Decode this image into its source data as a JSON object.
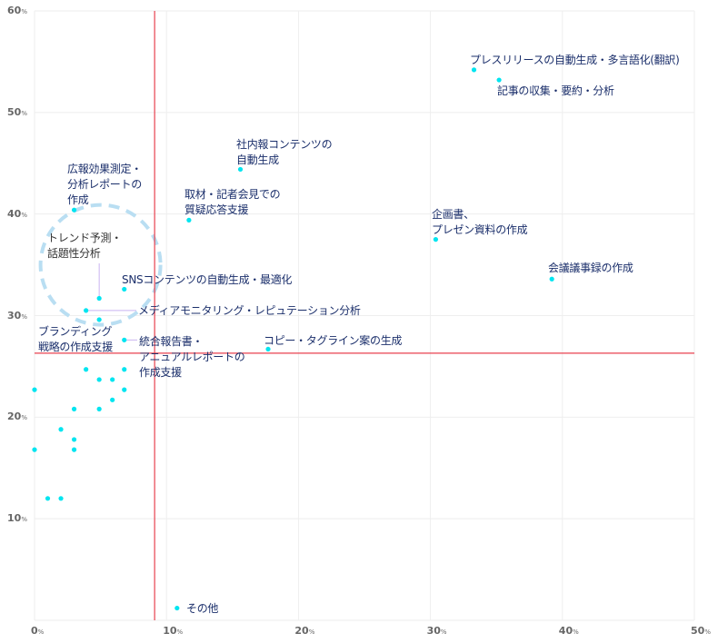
{
  "chart_data": {
    "type": "scatter",
    "title": "",
    "xlabel": "",
    "ylabel": "",
    "xlim": [
      0,
      50
    ],
    "ylim": [
      0,
      60
    ],
    "x_ticks": [
      "0",
      "10",
      "20",
      "30",
      "40",
      "50"
    ],
    "y_ticks": [
      "10",
      "20",
      "30",
      "40",
      "50",
      "60"
    ],
    "tick_suffix": "%",
    "grid": true,
    "colors": {
      "point": "#00e5f0",
      "reference_line": "#e8414f",
      "label": "#1b2f6b",
      "highlight_circle": "#b9def2",
      "leader": "#c9b3f0",
      "grid": "#eeeeee"
    },
    "reference_lines": {
      "x_mean": 9.1,
      "y_mean": 26.3
    },
    "highlight": {
      "label": [
        "トレンド予測・",
        "話題性分析"
      ],
      "center": [
        5.0,
        35.0
      ]
    },
    "points": [
      {
        "x": 33.3,
        "y": 54.2,
        "label": [
          "プレスリリースの自動生成・多言語化(翻訳)"
        ]
      },
      {
        "x": 35.2,
        "y": 53.2,
        "label": [
          "記事の収集・要約・分析"
        ]
      },
      {
        "x": 15.6,
        "y": 44.4,
        "label": [
          "社内報コンテンツの",
          "自動生成"
        ]
      },
      {
        "x": 11.7,
        "y": 39.4,
        "label": [
          "取材・記者会見での",
          "質疑応答支援"
        ]
      },
      {
        "x": 30.4,
        "y": 37.5,
        "label": [
          "企画書、",
          "プレゼン資料の作成"
        ]
      },
      {
        "x": 39.2,
        "y": 33.6,
        "label": [
          "会議議事録の作成"
        ]
      },
      {
        "x": 3.0,
        "y": 40.4,
        "label": [
          "広報効果測定・",
          "分析レポートの",
          "作成"
        ]
      },
      {
        "x": 6.8,
        "y": 32.6,
        "label": [
          "SNSコンテンツの自動生成・最適化"
        ]
      },
      {
        "x": 4.9,
        "y": 31.7,
        "label": null
      },
      {
        "x": 3.9,
        "y": 30.5,
        "label": [
          "メディアモニタリング・レピュテーション分析"
        ]
      },
      {
        "x": 4.9,
        "y": 29.6,
        "label": [
          "ブランディング",
          "戦略の作成支援"
        ]
      },
      {
        "x": 6.8,
        "y": 27.6,
        "label": [
          "統合報告書・",
          "アニュアルレポートの",
          "作成支援"
        ]
      },
      {
        "x": 17.7,
        "y": 26.7,
        "label": [
          "コピー・タグライン案の生成"
        ]
      },
      {
        "x": 3.9,
        "y": 24.7,
        "label": null
      },
      {
        "x": 6.8,
        "y": 24.7,
        "label": null
      },
      {
        "x": 4.9,
        "y": 23.7,
        "label": null
      },
      {
        "x": 5.9,
        "y": 23.7,
        "label": null
      },
      {
        "x": 0.0,
        "y": 22.7,
        "label": null
      },
      {
        "x": 6.8,
        "y": 22.7,
        "label": null
      },
      {
        "x": 5.9,
        "y": 21.7,
        "label": null
      },
      {
        "x": 3.0,
        "y": 20.8,
        "label": null
      },
      {
        "x": 4.9,
        "y": 20.8,
        "label": null
      },
      {
        "x": 2.0,
        "y": 18.8,
        "label": null
      },
      {
        "x": 3.0,
        "y": 17.8,
        "label": null
      },
      {
        "x": 0.0,
        "y": 16.8,
        "label": null
      },
      {
        "x": 3.0,
        "y": 16.8,
        "label": null
      },
      {
        "x": 1.0,
        "y": 12.0,
        "label": null
      },
      {
        "x": 2.0,
        "y": 12.0,
        "label": null
      },
      {
        "x": 10.8,
        "y": 1.2,
        "label": [
          "その他"
        ]
      }
    ]
  }
}
